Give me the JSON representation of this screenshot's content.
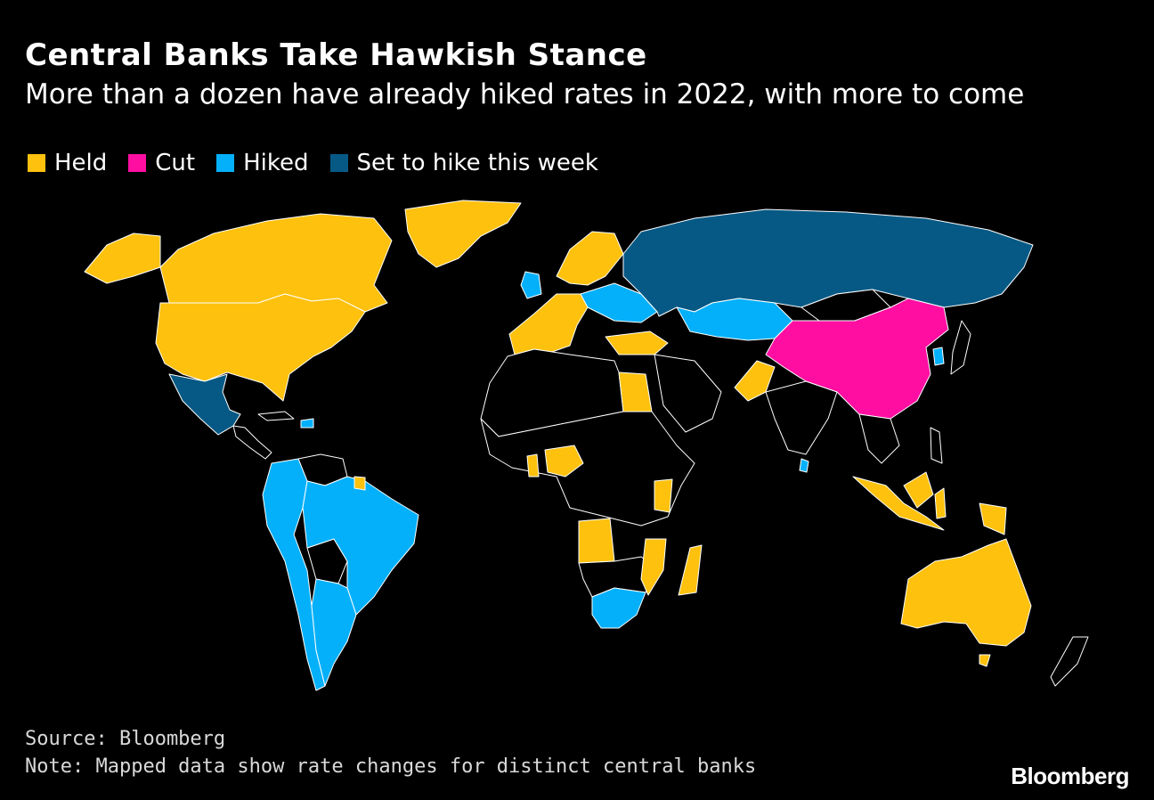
{
  "header": {
    "title": "Central Banks Take Hawkish Stance",
    "subtitle": "More than a dozen have already hiked rates in 2022, with more to come"
  },
  "legend": [
    {
      "label": "Held",
      "color": "#fdc10e"
    },
    {
      "label": "Cut",
      "color": "#ff0ea1"
    },
    {
      "label": "Hiked",
      "color": "#05b0fa"
    },
    {
      "label": "Set to hike this week",
      "color": "#075985"
    }
  ],
  "map": {
    "background_color": "#000000",
    "border_color": "#ffffff",
    "no_data_color": "#000000",
    "regions": [
      {
        "name": "United States",
        "status": "Held"
      },
      {
        "name": "Canada",
        "status": "Held"
      },
      {
        "name": "Greenland",
        "status": "Held"
      },
      {
        "name": "Mexico",
        "status": "Set to hike this week"
      },
      {
        "name": "South America west (Colombia, Peru, Chile)",
        "status": "Hiked"
      },
      {
        "name": "Brazil",
        "status": "Hiked"
      },
      {
        "name": "Argentina",
        "status": "Hiked"
      },
      {
        "name": "Western Europe",
        "status": "Held"
      },
      {
        "name": "United Kingdom",
        "status": "Hiked"
      },
      {
        "name": "Central Europe",
        "status": "Hiked"
      },
      {
        "name": "Scandinavia",
        "status": "Held"
      },
      {
        "name": "Russia",
        "status": "Set to hike this week"
      },
      {
        "name": "Kazakhstan",
        "status": "Hiked"
      },
      {
        "name": "China",
        "status": "Cut"
      },
      {
        "name": "Turkey",
        "status": "Held"
      },
      {
        "name": "Egypt",
        "status": "Held"
      },
      {
        "name": "Pakistan",
        "status": "Held"
      },
      {
        "name": "Nigeria",
        "status": "Held"
      },
      {
        "name": "Kenya",
        "status": "Held"
      },
      {
        "name": "Angola",
        "status": "Held"
      },
      {
        "name": "Mozambique",
        "status": "Held"
      },
      {
        "name": "Madagascar",
        "status": "Held"
      },
      {
        "name": "South Africa",
        "status": "Hiked"
      },
      {
        "name": "Australia",
        "status": "Held"
      },
      {
        "name": "Indonesia",
        "status": "Held"
      },
      {
        "name": "Philippines",
        "status": "Held"
      },
      {
        "name": "South Korea",
        "status": "Hiked"
      },
      {
        "name": "Sri Lanka",
        "status": "Hiked"
      }
    ]
  },
  "footer": {
    "source": "Source: Bloomberg",
    "note": "Note: Mapped data show rate changes for distinct central banks",
    "brand": "Bloomberg"
  }
}
